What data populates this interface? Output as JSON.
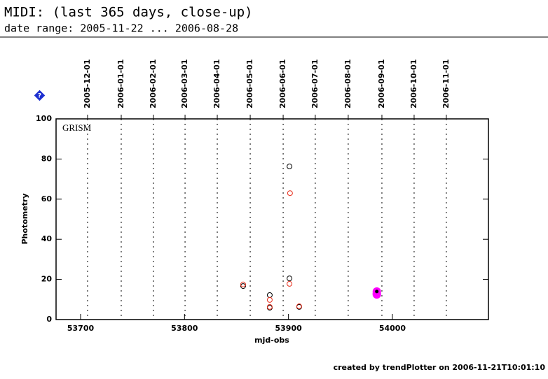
{
  "header": {
    "title": "MIDI: (last 365 days, close-up)",
    "subtitle": "date range: 2005-11-22 ... 2006-08-28"
  },
  "help_icon": "?",
  "footer": "created by trendPlotter on 2006-11-21T10:01:10",
  "chart_data": {
    "type": "scatter",
    "panel_label": "GRISM",
    "x_label": "mjd-obs",
    "y_label": "Photometry",
    "xlim": [
      53676.4,
      54092.4
    ],
    "xticks": [
      53700,
      53800,
      53900,
      54000
    ],
    "ylim": [
      0,
      100
    ],
    "yticks": [
      0,
      20,
      40,
      60,
      80,
      100
    ],
    "date_lines": [
      {
        "value": 53706.7,
        "label": "2005-12-01"
      },
      {
        "value": 53739.1,
        "label": "2006-01-01"
      },
      {
        "value": 53770.1,
        "label": "2006-02-01"
      },
      {
        "value": 53800.5,
        "label": "2006-03-01"
      },
      {
        "value": 53831.5,
        "label": "2006-04-01"
      },
      {
        "value": 53863.2,
        "label": "2006-05-01"
      },
      {
        "value": 53894.9,
        "label": "2006-06-01"
      },
      {
        "value": 53925.8,
        "label": "2006-07-01"
      },
      {
        "value": 53957.5,
        "label": "2006-08-01"
      },
      {
        "value": 53989.9,
        "label": "2006-09-01"
      },
      {
        "value": 54020.9,
        "label": "2006-10-01"
      },
      {
        "value": 54051.9,
        "label": "2006-11-01"
      }
    ],
    "series": [
      {
        "color": "#000000",
        "marker": "open",
        "x": [
          53856.4,
          53882,
          53882,
          53901,
          53901,
          53910.3
        ],
        "values": [
          16.7,
          12.2,
          5.9,
          76.3,
          20.5,
          6.3
        ]
      },
      {
        "color": "#e8301e",
        "marker": "open",
        "x": [
          53856.4,
          53882,
          53882,
          53901.5,
          53901,
          53910.3
        ],
        "values": [
          17.5,
          9.8,
          6.3,
          63,
          17.8,
          6.6
        ]
      },
      {
        "color": "#ff00ff",
        "marker": "filled",
        "x": [
          53985,
          53985,
          53985
        ],
        "values": [
          14,
          12.5,
          13
        ]
      },
      {
        "color": "#000000",
        "marker": "dot",
        "x": [
          53985
        ],
        "values": [
          14
        ]
      }
    ]
  }
}
